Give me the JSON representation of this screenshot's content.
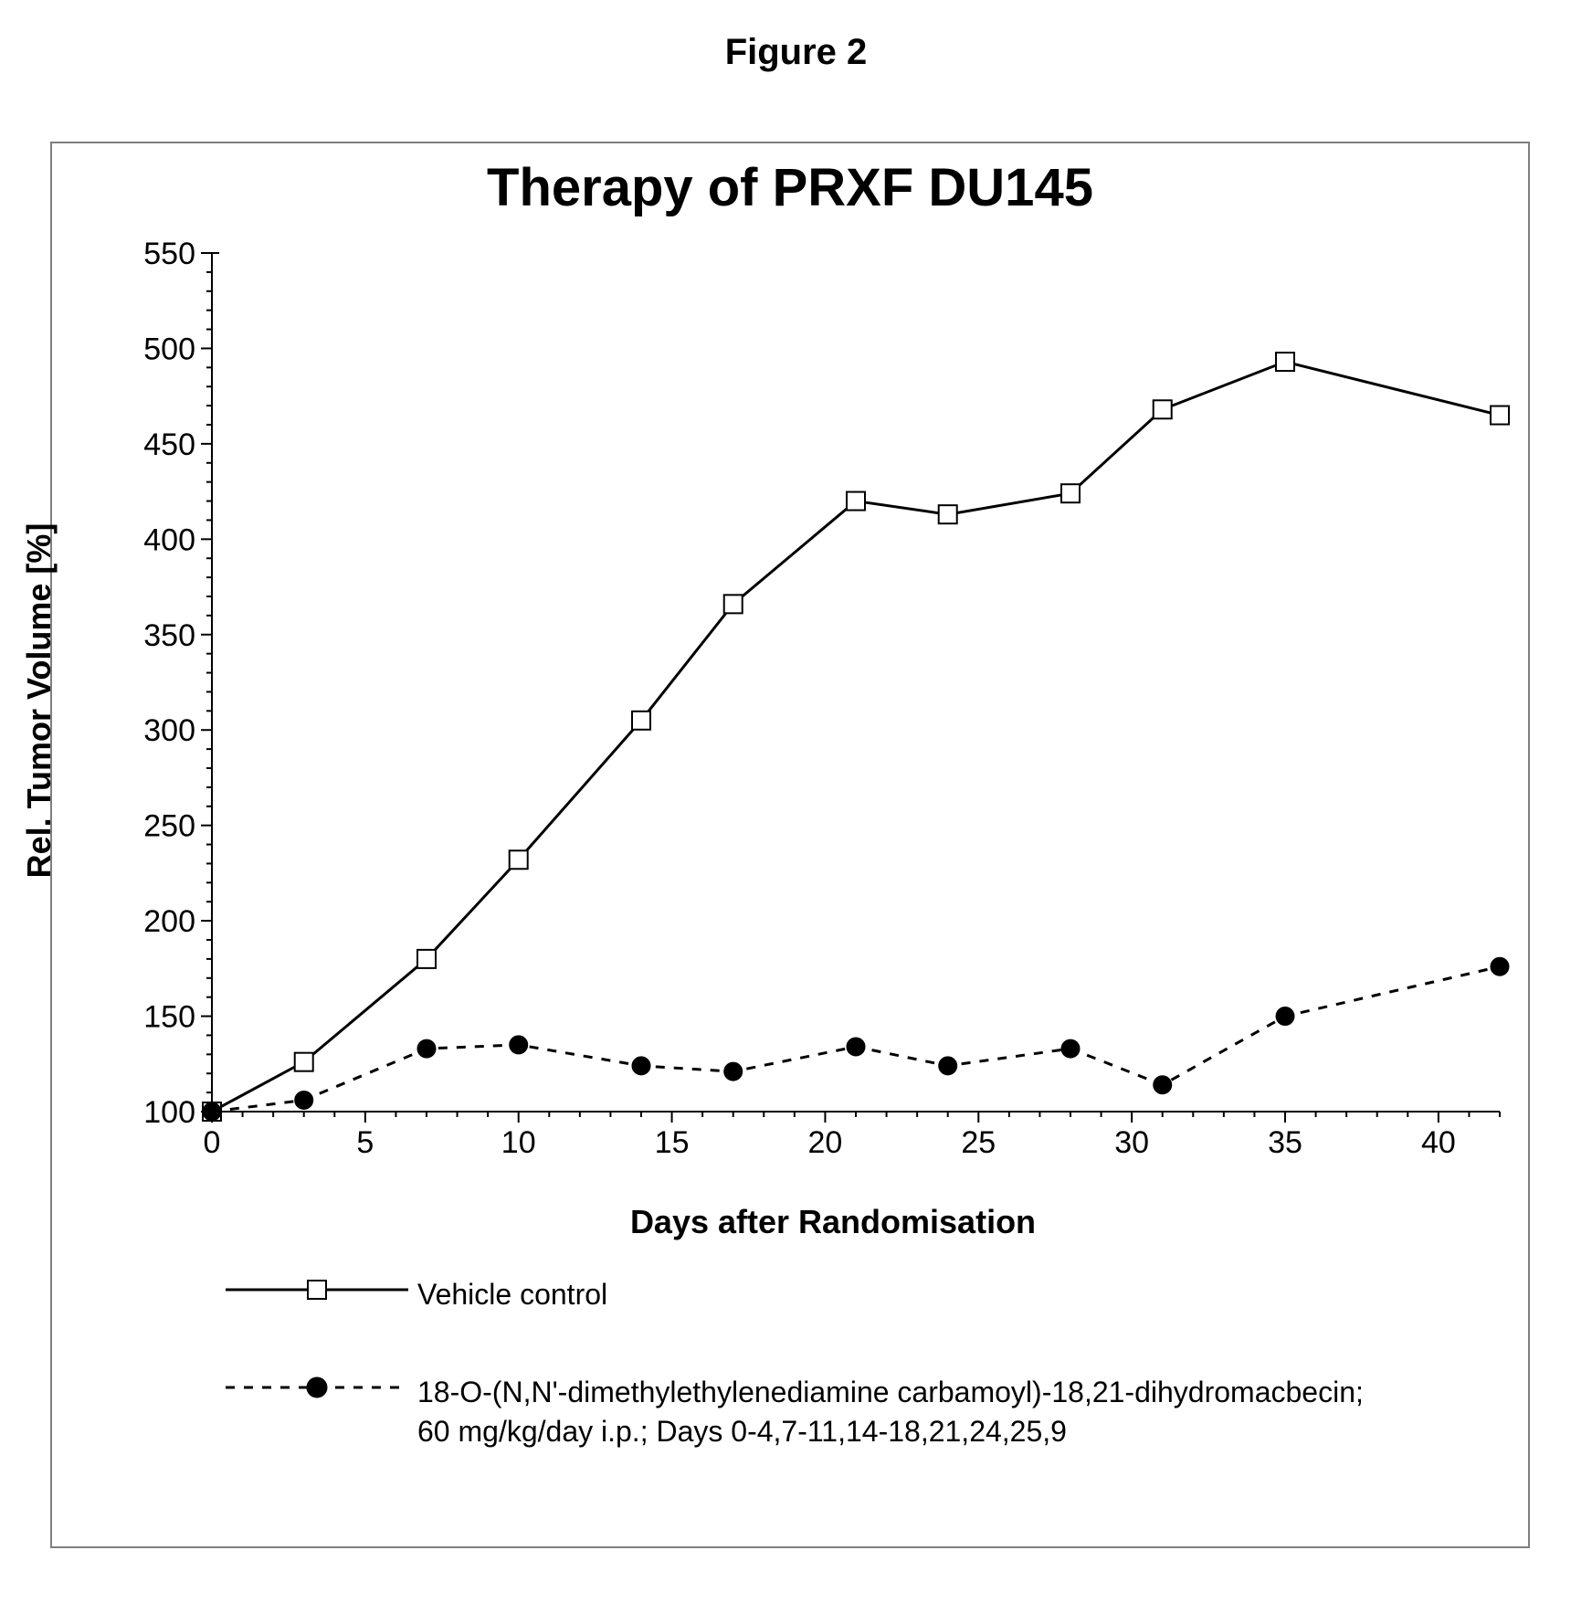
{
  "figure_caption": "Figure 2",
  "chart": {
    "type": "line",
    "title": "Therapy of PRXF DU145",
    "title_fontsize": 58,
    "xlabel": "Days after Randomisation",
    "ylabel": "Rel. Tumor Volume [%]",
    "label_fontsize": 36,
    "tick_fontsize": 34,
    "background_color": "#ffffff",
    "frame_color": "#7f7f7f",
    "axis_color": "#000000",
    "xlim": [
      0,
      42
    ],
    "ylim": [
      100,
      550
    ],
    "xtick_major_step": 5,
    "xtick_minor_step": 1,
    "ytick_major_step": 50,
    "ytick_minor_step": 10,
    "xticks_major": [
      0,
      5,
      10,
      15,
      20,
      25,
      30,
      35,
      40
    ],
    "yticks_major": [
      100,
      150,
      200,
      250,
      300,
      350,
      400,
      450,
      500,
      550
    ],
    "series": [
      {
        "name": "Vehicle control",
        "line_style": "solid",
        "line_width": 3,
        "line_color": "#000000",
        "marker": "square-open",
        "marker_size": 20,
        "marker_fill": "#ffffff",
        "marker_stroke": "#000000",
        "x": [
          0,
          3,
          7,
          10,
          14,
          17,
          21,
          24,
          28,
          31,
          35,
          42
        ],
        "y": [
          100,
          126,
          180,
          232,
          305,
          366,
          420,
          413,
          424,
          468,
          493,
          465
        ]
      },
      {
        "name": "18-O-(N,N'-dimethylethylenediamine carbamoyl)-18,21-dihydromacbecin; 60 mg/kg/day i.p.; Days 0-4,7-11,14-18,21,24,25,9",
        "line_style": "dashed",
        "dash_pattern": "10 10",
        "line_width": 3,
        "line_color": "#000000",
        "marker": "circle-filled",
        "marker_size": 20,
        "marker_fill": "#000000",
        "marker_stroke": "#000000",
        "x": [
          0,
          3,
          7,
          10,
          14,
          17,
          21,
          24,
          28,
          31,
          35,
          42
        ],
        "y": [
          100,
          106,
          133,
          135,
          124,
          121,
          134,
          124,
          133,
          114,
          150,
          176
        ]
      }
    ],
    "legend": {
      "position": "bottom-left",
      "items": [
        {
          "label": "Vehicle control",
          "series_index": 0
        },
        {
          "label": "18-O-(N,N'-dimethylethylenediamine carbamoyl)-18,21-dihydromacbecin;\n60 mg/kg/day i.p.; Days 0-4,7-11,14-18,21,24,25,9",
          "series_index": 1
        }
      ]
    }
  }
}
